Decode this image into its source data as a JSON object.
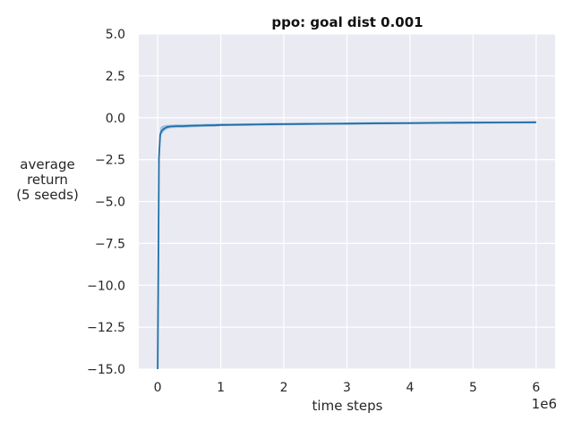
{
  "chart_data": {
    "type": "line",
    "title": "ppo: goal dist 0.001",
    "xlabel": "time steps",
    "ylabel_lines": [
      "average",
      "return",
      "(5 seeds)"
    ],
    "x_multiplier_label": "1e6",
    "xlim": [
      -0.3,
      6.3
    ],
    "ylim": [
      -15.0,
      5.0
    ],
    "x_ticks": [
      0,
      1,
      2,
      3,
      4,
      5,
      6
    ],
    "x_tick_labels": [
      "0",
      "1",
      "2",
      "3",
      "4",
      "5",
      "6"
    ],
    "y_ticks": [
      5.0,
      2.5,
      0.0,
      -2.5,
      -5.0,
      -7.5,
      -10.0,
      -12.5,
      -15.0
    ],
    "y_tick_labels": [
      "5.0",
      "2.5",
      "0.0",
      "−2.5",
      "−5.0",
      "−7.5",
      "−10.0",
      "−12.5",
      "−15.0"
    ],
    "grid": true,
    "background_color": "#eaeaf2",
    "series": [
      {
        "color": "#1f6fa8",
        "band_color": "#1f77b4",
        "x": [
          0.0,
          0.02,
          0.04,
          0.06,
          0.1,
          0.15,
          0.2,
          0.3,
          0.4,
          0.5,
          0.6,
          0.7,
          0.8,
          0.9,
          1.0,
          1.2,
          1.4,
          1.6,
          1.8,
          2.0,
          2.3,
          2.6,
          3.0,
          3.5,
          4.0,
          4.5,
          5.0,
          5.5,
          6.0
        ],
        "y": [
          -15.0,
          -2.4,
          -1.0,
          -0.8,
          -0.65,
          -0.55,
          -0.52,
          -0.5,
          -0.5,
          -0.48,
          -0.47,
          -0.46,
          -0.45,
          -0.45,
          -0.43,
          -0.42,
          -0.41,
          -0.4,
          -0.39,
          -0.38,
          -0.37,
          -0.36,
          -0.35,
          -0.33,
          -0.32,
          -0.3,
          -0.29,
          -0.28,
          -0.27
        ],
        "y_low": [
          -15.0,
          -2.6,
          -1.3,
          -1.0,
          -0.8,
          -0.68,
          -0.62,
          -0.6,
          -0.6,
          -0.57,
          -0.56,
          -0.55,
          -0.54,
          -0.53,
          -0.5,
          -0.49,
          -0.48,
          -0.47,
          -0.46,
          -0.45,
          -0.44,
          -0.43,
          -0.42,
          -0.4,
          -0.39,
          -0.37,
          -0.36,
          -0.35,
          -0.34
        ],
        "y_high": [
          -15.0,
          -2.2,
          -0.6,
          -0.5,
          -0.45,
          -0.42,
          -0.42,
          -0.4,
          -0.4,
          -0.39,
          -0.38,
          -0.37,
          -0.36,
          -0.36,
          -0.35,
          -0.34,
          -0.33,
          -0.32,
          -0.31,
          -0.31,
          -0.3,
          -0.29,
          -0.28,
          -0.26,
          -0.25,
          -0.24,
          -0.23,
          -0.22,
          -0.21
        ]
      }
    ]
  }
}
